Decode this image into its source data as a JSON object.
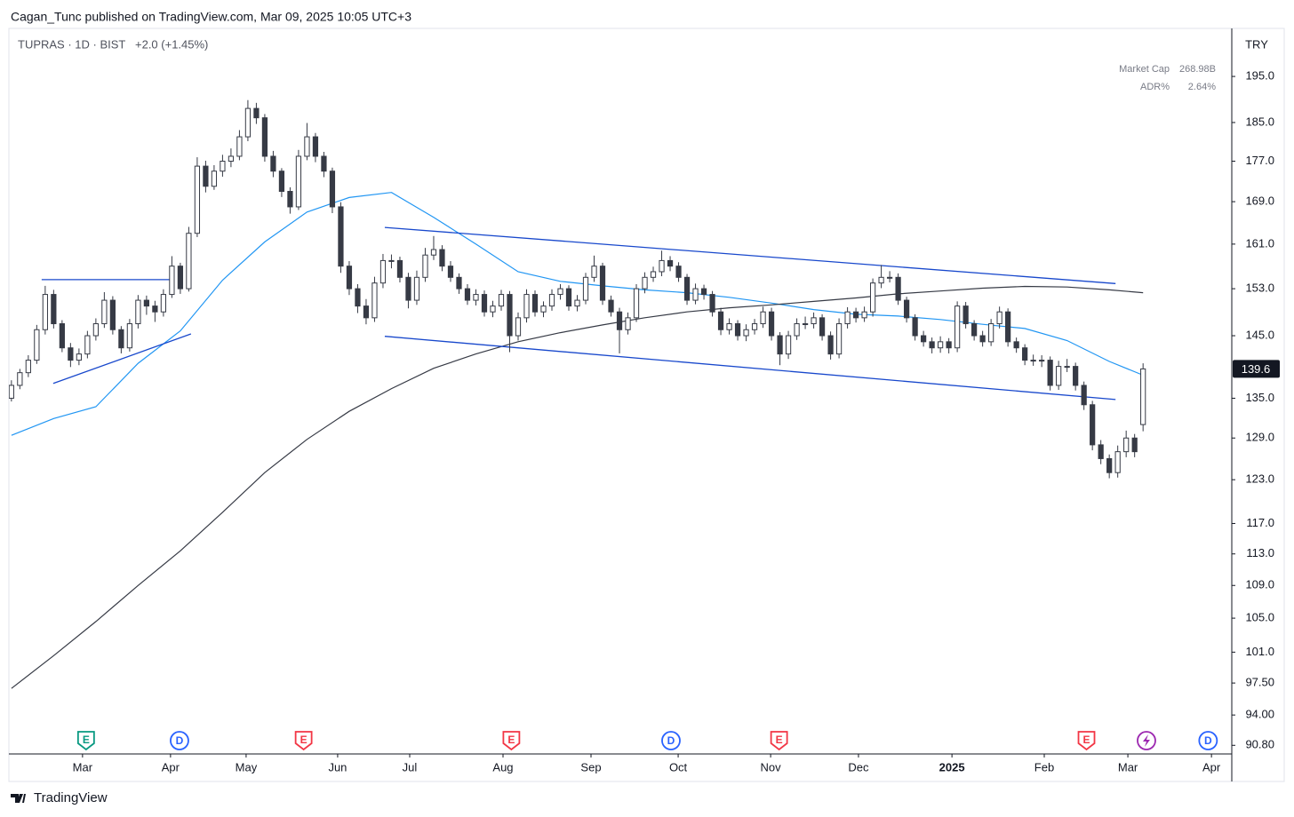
{
  "chart_data": {
    "type": "candlestick",
    "published": "Cagan_Tunc published on TradingView.com, Mar 09, 2025 10:05 UTC+3",
    "symbol": "TUPRAS · 1D · BIST",
    "change": "+2.0 (+1.45%)",
    "currency": "TRY",
    "brand": "TradingView",
    "info": [
      {
        "name": "Market Cap",
        "value": "268.98B"
      },
      {
        "name": "ADR%",
        "value": "2.64%"
      }
    ],
    "log_scale": true,
    "grid": false,
    "up_color": "#ffffff",
    "down_color": "#363a45",
    "outline_color": "#363a45",
    "ylim": [
      90,
      206
    ],
    "yticks": [
      {
        "value": 195,
        "label": "195.0"
      },
      {
        "value": 185,
        "label": "185.0"
      },
      {
        "value": 177,
        "label": "177.0"
      },
      {
        "value": 169,
        "label": "169.0"
      },
      {
        "value": 161,
        "label": "161.0"
      },
      {
        "value": 153,
        "label": "153.0"
      },
      {
        "value": 145,
        "label": "145.0"
      },
      {
        "value": 135,
        "label": "135.0"
      },
      {
        "value": 129,
        "label": "129.0"
      },
      {
        "value": 123,
        "label": "123.0"
      },
      {
        "value": 117,
        "label": "117.0"
      },
      {
        "value": 113,
        "label": "113.0"
      },
      {
        "value": 109,
        "label": "109.0"
      },
      {
        "value": 105,
        "label": "105.0"
      },
      {
        "value": 101,
        "label": "101.0"
      },
      {
        "value": 97.5,
        "label": "97.50"
      },
      {
        "value": 94,
        "label": "94.00"
      },
      {
        "value": 90.8,
        "label": "90.80"
      }
    ],
    "xlim": [
      -0.3,
      144.4
    ],
    "xticks": [
      {
        "value": 8.42,
        "label": "Mar"
      },
      {
        "value": 18.84,
        "label": "Apr"
      },
      {
        "value": 27.79,
        "label": "May"
      },
      {
        "value": 38.63,
        "label": "Jun"
      },
      {
        "value": 47.16,
        "label": "Jul"
      },
      {
        "value": 58.21,
        "label": "Aug"
      },
      {
        "value": 68.63,
        "label": "Sep"
      },
      {
        "value": 78.95,
        "label": "Oct"
      },
      {
        "value": 89.9,
        "label": "Nov"
      },
      {
        "value": 100.3,
        "label": "Dec"
      },
      {
        "value": 111.37,
        "label": "2025",
        "bold": true
      },
      {
        "value": 122.3,
        "label": "Feb"
      },
      {
        "value": 132.2,
        "label": "Mar"
      },
      {
        "value": 142.1,
        "label": "Apr"
      }
    ],
    "candles": [
      [
        135,
        137.8,
        134.5,
        137
      ],
      [
        137,
        139.6,
        136.4,
        139
      ],
      [
        139,
        141.8,
        138.3,
        141
      ],
      [
        141,
        146.8,
        140.4,
        146
      ],
      [
        146,
        153.5,
        145.2,
        152
      ],
      [
        152,
        152.8,
        146.2,
        147
      ],
      [
        147,
        147.6,
        142.3,
        143
      ],
      [
        143,
        143.8,
        139.9,
        141
      ],
      [
        141,
        142.9,
        140.2,
        142
      ],
      [
        142,
        145.8,
        141.3,
        145
      ],
      [
        145,
        147.9,
        144.2,
        147
      ],
      [
        147,
        152.4,
        146.3,
        151
      ],
      [
        151,
        151.7,
        145.2,
        146
      ],
      [
        146,
        146.6,
        142.1,
        143
      ],
      [
        143,
        147.8,
        142.4,
        147
      ],
      [
        147,
        151.9,
        146.2,
        151
      ],
      [
        151,
        151.8,
        148.5,
        150
      ],
      [
        150,
        150.9,
        147.3,
        149
      ],
      [
        149,
        152.9,
        148.2,
        152
      ],
      [
        152,
        158.8,
        151.4,
        157
      ],
      [
        157,
        157.6,
        152.1,
        153
      ],
      [
        153,
        164.2,
        152.5,
        163
      ],
      [
        163,
        177.8,
        162.3,
        176
      ],
      [
        176,
        177.1,
        170.8,
        172
      ],
      [
        172,
        176.2,
        171.3,
        175
      ],
      [
        175,
        178.3,
        173.9,
        177
      ],
      [
        177,
        179.6,
        175.8,
        178
      ],
      [
        178,
        183.4,
        177.2,
        182
      ],
      [
        182,
        189.8,
        181.1,
        188
      ],
      [
        188,
        189.2,
        184.7,
        186
      ],
      [
        186,
        186.8,
        176.9,
        178
      ],
      [
        178,
        179.1,
        173.8,
        175
      ],
      [
        175,
        175.6,
        169.9,
        171
      ],
      [
        171,
        171.8,
        166.7,
        168
      ],
      [
        168,
        179.3,
        167.4,
        178
      ],
      [
        178,
        184.9,
        177.2,
        182
      ],
      [
        182,
        182.8,
        176.8,
        178
      ],
      [
        178,
        178.9,
        173.8,
        175
      ],
      [
        175,
        175.7,
        166.8,
        168
      ],
      [
        168,
        168.9,
        155.8,
        157
      ],
      [
        157,
        157.9,
        151.9,
        153
      ],
      [
        153,
        153.8,
        148.8,
        150
      ],
      [
        150,
        151.2,
        146.9,
        148
      ],
      [
        148,
        155.1,
        147.3,
        154
      ],
      [
        154,
        159.2,
        153.1,
        158
      ],
      [
        158,
        159.1,
        156.6,
        158
      ],
      [
        158,
        158.7,
        154.1,
        155
      ],
      [
        155,
        155.8,
        149.6,
        151
      ],
      [
        151,
        156.2,
        150.2,
        155
      ],
      [
        155,
        160.3,
        154.2,
        159
      ],
      [
        159,
        162.5,
        158.1,
        160
      ],
      [
        160,
        160.8,
        156.1,
        157
      ],
      [
        157,
        157.9,
        154.2,
        155
      ],
      [
        155,
        155.7,
        152.1,
        153
      ],
      [
        153,
        153.8,
        150.2,
        151
      ],
      [
        151,
        152.9,
        150.1,
        152
      ],
      [
        152,
        152.7,
        148.2,
        149
      ],
      [
        149,
        150.9,
        148.1,
        150
      ],
      [
        150,
        152.8,
        149.2,
        152
      ],
      [
        152,
        152.6,
        142.3,
        145
      ],
      [
        145,
        148.9,
        144.2,
        148
      ],
      [
        148,
        152.9,
        147.2,
        152
      ],
      [
        152,
        152.7,
        148.2,
        149
      ],
      [
        149,
        150.8,
        148.1,
        150
      ],
      [
        150,
        152.9,
        149.2,
        152
      ],
      [
        152,
        153.8,
        151.1,
        153
      ],
      [
        153,
        153.6,
        149.2,
        150
      ],
      [
        150,
        151.9,
        149.1,
        151
      ],
      [
        151,
        155.8,
        150.3,
        155
      ],
      [
        155,
        158.9,
        154.2,
        157
      ],
      [
        157,
        157.6,
        150.2,
        151
      ],
      [
        151,
        151.8,
        148.2,
        149
      ],
      [
        149,
        149.7,
        142.1,
        146
      ],
      [
        146,
        148.9,
        145.2,
        148
      ],
      [
        148,
        153.8,
        147.3,
        153
      ],
      [
        153,
        155.9,
        152.2,
        155
      ],
      [
        155,
        156.9,
        154.2,
        156
      ],
      [
        156,
        159.8,
        155.2,
        158
      ],
      [
        158,
        158.8,
        156.1,
        157
      ],
      [
        157,
        157.7,
        154.2,
        155
      ],
      [
        155,
        155.6,
        150.2,
        151
      ],
      [
        151,
        153.9,
        150.3,
        153
      ],
      [
        153,
        153.7,
        151.1,
        152
      ],
      [
        152,
        152.6,
        148.2,
        149
      ],
      [
        149,
        149.7,
        145.1,
        146
      ],
      [
        146,
        147.9,
        145.2,
        147
      ],
      [
        147,
        147.6,
        144.2,
        145
      ],
      [
        145,
        146.9,
        144.1,
        146
      ],
      [
        146,
        147.8,
        145.2,
        147
      ],
      [
        147,
        149.9,
        146.3,
        149
      ],
      [
        149,
        149.7,
        144.2,
        145
      ],
      [
        145,
        145.6,
        140.2,
        142
      ],
      [
        142,
        145.8,
        141.2,
        145
      ],
      [
        145,
        147.9,
        144.3,
        147
      ],
      [
        147,
        148.2,
        146.1,
        147
      ],
      [
        147,
        148.9,
        146.2,
        148
      ],
      [
        148,
        148.6,
        144.2,
        145
      ],
      [
        145,
        145.7,
        141.1,
        142
      ],
      [
        142,
        147.9,
        141.3,
        147
      ],
      [
        147,
        149.8,
        146.2,
        149
      ],
      [
        149,
        149.7,
        147.2,
        148
      ],
      [
        148,
        149.9,
        147.3,
        149
      ],
      [
        149,
        154.8,
        148.2,
        154
      ],
      [
        154,
        157.2,
        153.1,
        155
      ],
      [
        155,
        156.1,
        154.1,
        155
      ],
      [
        155,
        155.7,
        150.2,
        151
      ],
      [
        151,
        151.6,
        147.2,
        148
      ],
      [
        148,
        148.6,
        144.2,
        145
      ],
      [
        145,
        145.8,
        143.2,
        144
      ],
      [
        144,
        144.7,
        142.1,
        143
      ],
      [
        143,
        144.9,
        142.2,
        144
      ],
      [
        144,
        144.6,
        142.1,
        143
      ],
      [
        143,
        150.8,
        142.3,
        150
      ],
      [
        150,
        150.7,
        146.2,
        147
      ],
      [
        147,
        147.6,
        144.2,
        145
      ],
      [
        145,
        145.8,
        143.2,
        144
      ],
      [
        144,
        147.8,
        143.3,
        147
      ],
      [
        147,
        149.9,
        146.2,
        149
      ],
      [
        149,
        149.6,
        143.2,
        144
      ],
      [
        144,
        144.7,
        142.2,
        143
      ],
      [
        143,
        143.6,
        140.2,
        141
      ],
      [
        141,
        141.9,
        140.1,
        141
      ],
      [
        141,
        141.8,
        139.9,
        141
      ],
      [
        141,
        141.6,
        136.2,
        137
      ],
      [
        137,
        140.9,
        136.3,
        140
      ],
      [
        140,
        141.2,
        139.1,
        140
      ],
      [
        140,
        140.6,
        136.2,
        137
      ],
      [
        137,
        137.6,
        133.2,
        134
      ],
      [
        134,
        134.6,
        127.2,
        128
      ],
      [
        128,
        128.7,
        125.2,
        126
      ],
      [
        126,
        126.6,
        123.2,
        124
      ],
      [
        124,
        127.9,
        123.3,
        127
      ],
      [
        127,
        130.1,
        126.2,
        129
      ],
      [
        129,
        129.6,
        126.2,
        127
      ],
      [
        131,
        140.5,
        130,
        139.6
      ]
    ],
    "series": [
      {
        "color": "#2196f3",
        "x": [
          0,
          5,
          10,
          15,
          20,
          25,
          30,
          35,
          40,
          45,
          50,
          55,
          60,
          65,
          70,
          75,
          80,
          85,
          90,
          95,
          100,
          105,
          110,
          115,
          120,
          125,
          130,
          134
        ],
        "values": [
          129.4,
          131.9,
          133.7,
          140.5,
          145.8,
          154.5,
          161.4,
          167,
          169.8,
          170.8,
          166,
          161,
          156,
          154.3,
          153.5,
          152.8,
          152.3,
          151.5,
          150.5,
          149.4,
          148.6,
          148.3,
          147.7,
          146.9,
          146.2,
          144.2,
          140.8,
          138.6
        ]
      },
      {
        "color": "#363a45",
        "x": [
          0,
          5,
          10,
          15,
          20,
          25,
          30,
          35,
          40,
          45,
          50,
          55,
          60,
          65,
          70,
          75,
          80,
          85,
          90,
          95,
          100,
          105,
          110,
          115,
          120,
          125,
          130,
          134
        ],
        "values": [
          96.9,
          100.6,
          104.6,
          109,
          113.4,
          118.5,
          124,
          128.8,
          133,
          136.5,
          139.7,
          142,
          144,
          145.5,
          146.8,
          148,
          149,
          149.7,
          150.2,
          150.8,
          151.4,
          152.1,
          152.6,
          153.1,
          153.4,
          153.3,
          152.8,
          152.3
        ]
      }
    ],
    "drawings": [
      {
        "color": "#1848cc",
        "x": [
          3.58,
          19.16
        ],
        "values": [
          154.6,
          154.6
        ]
      },
      {
        "color": "#1848cc",
        "x": [
          4.95,
          21.26
        ],
        "values": [
          137.3,
          145.3
        ]
      },
      {
        "color": "#1848cc",
        "x": [
          44.21,
          130.74
        ],
        "values": [
          164.1,
          153.9
        ]
      },
      {
        "color": "#1848cc",
        "x": [
          44.21,
          130.74
        ],
        "values": [
          144.9,
          134.8
        ]
      }
    ],
    "events": [
      {
        "x": 8.84,
        "label": "E",
        "shape": "shield",
        "color": "#089981"
      },
      {
        "x": 19.9,
        "label": "D",
        "shape": "circle",
        "color": "#2962ff"
      },
      {
        "x": 34.6,
        "label": "E",
        "shape": "shield",
        "color": "#f23645"
      },
      {
        "x": 59.2,
        "label": "E",
        "shape": "shield",
        "color": "#f23645"
      },
      {
        "x": 78.1,
        "label": "D",
        "shape": "circle",
        "color": "#2962ff"
      },
      {
        "x": 90.9,
        "label": "E",
        "shape": "shield",
        "color": "#f23645"
      },
      {
        "x": 127.3,
        "label": "E",
        "shape": "shield",
        "color": "#f23645"
      },
      {
        "x": 134.4,
        "shape": "bolt",
        "color": "#9c27b0"
      },
      {
        "x": 141.7,
        "label": "D",
        "shape": "circle",
        "color": "#2962ff"
      }
    ]
  }
}
